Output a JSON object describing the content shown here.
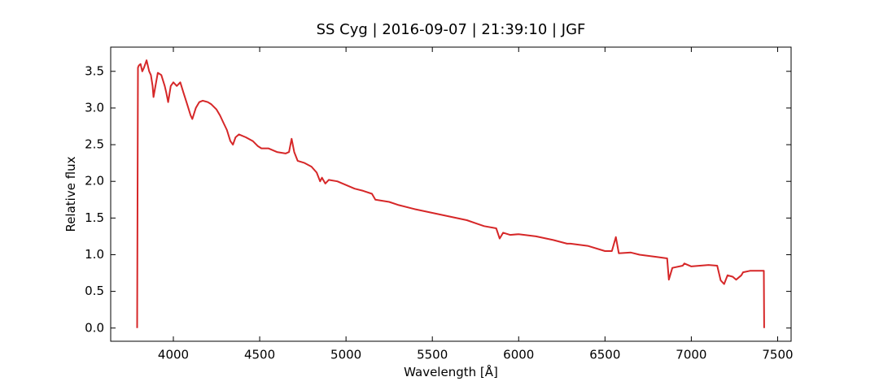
{
  "chart_data": {
    "type": "line",
    "title": "SS Cyg | 2016-09-07 | 21:39:10 | JGF",
    "x_label": "Wavelength [Å]",
    "y_label": "Relative flux",
    "xlim": [
      3637,
      7578
    ],
    "ylim": [
      -0.18,
      3.83
    ],
    "xticks": [
      4000,
      4500,
      5000,
      5500,
      6000,
      6500,
      7000,
      7500
    ],
    "yticks": [
      {
        "value": 0,
        "label": "0.0"
      },
      0.5,
      {
        "value": 1,
        "label": "1.0"
      },
      1.5,
      {
        "value": 2,
        "label": "2.0"
      },
      2.5,
      {
        "value": 3,
        "label": "3.0"
      },
      3.5
    ],
    "series": [
      {
        "color": "#d62728",
        "x": [
          3790,
          3795,
          3800,
          3810,
          3820,
          3830,
          3845,
          3860,
          3870,
          3880,
          3885,
          3900,
          3910,
          3930,
          3950,
          3960,
          3970,
          3985,
          4000,
          4020,
          4040,
          4060,
          4080,
          4100,
          4110,
          4130,
          4150,
          4170,
          4200,
          4220,
          4250,
          4270,
          4290,
          4310,
          4330,
          4345,
          4360,
          4380,
          4420,
          4460,
          4490,
          4510,
          4550,
          4600,
          4650,
          4670,
          4685,
          4700,
          4720,
          4760,
          4800,
          4830,
          4850,
          4861,
          4880,
          4900,
          4950,
          5000,
          5050,
          5100,
          5150,
          5170,
          5250,
          5300,
          5400,
          5500,
          5600,
          5700,
          5750,
          5800,
          5870,
          5890,
          5910,
          5950,
          6000,
          6100,
          6200,
          6280,
          6300,
          6400,
          6500,
          6540,
          6563,
          6580,
          6650,
          6700,
          6800,
          6860,
          6870,
          6890,
          6950,
          6960,
          7000,
          7100,
          7150,
          7170,
          7190,
          7210,
          7240,
          7260,
          7290,
          7300,
          7340,
          7400,
          7420,
          7422
        ],
        "values": [
          0,
          3.55,
          3.58,
          3.6,
          3.5,
          3.55,
          3.65,
          3.5,
          3.45,
          3.3,
          3.15,
          3.35,
          3.48,
          3.45,
          3.3,
          3.2,
          3.08,
          3.3,
          3.35,
          3.3,
          3.35,
          3.2,
          3.05,
          2.9,
          2.85,
          3.0,
          3.08,
          3.1,
          3.08,
          3.05,
          2.98,
          2.9,
          2.8,
          2.7,
          2.55,
          2.5,
          2.6,
          2.64,
          2.6,
          2.55,
          2.48,
          2.45,
          2.45,
          2.4,
          2.38,
          2.4,
          2.58,
          2.4,
          2.28,
          2.25,
          2.2,
          2.12,
          2.0,
          2.05,
          1.97,
          2.02,
          2.0,
          1.95,
          1.9,
          1.87,
          1.83,
          1.75,
          1.72,
          1.68,
          1.62,
          1.57,
          1.52,
          1.47,
          1.43,
          1.39,
          1.36,
          1.22,
          1.3,
          1.27,
          1.28,
          1.25,
          1.2,
          1.15,
          1.15,
          1.12,
          1.05,
          1.05,
          1.24,
          1.02,
          1.03,
          1.0,
          0.97,
          0.95,
          0.66,
          0.82,
          0.85,
          0.88,
          0.84,
          0.86,
          0.85,
          0.65,
          0.6,
          0.72,
          0.7,
          0.66,
          0.72,
          0.76,
          0.78,
          0.78,
          0.78,
          0
        ]
      }
    ]
  }
}
